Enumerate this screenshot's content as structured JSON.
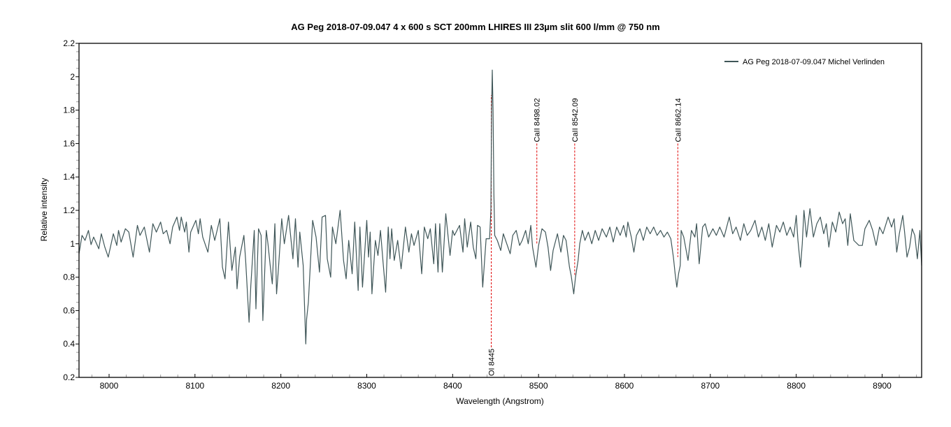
{
  "chart_data": {
    "type": "line",
    "title": "AG Peg   2018-07-09.047   4 x 600 s   SCT 200mm  LHIRES III 23µm slit 600 l/mm @ 750 nm",
    "xlabel": "Wavelength (Angstrom)",
    "ylabel": "Relative intensity",
    "xlim": [
      7965,
      8946
    ],
    "ylim": [
      0.2,
      2.2
    ],
    "x_ticks": [
      8000,
      8100,
      8200,
      8300,
      8400,
      8500,
      8600,
      8700,
      8800,
      8900
    ],
    "x_tick_labels": [
      "8000",
      "8100",
      "8200",
      "8300",
      "8400",
      "8500",
      "8600",
      "8700",
      "8800",
      "8900"
    ],
    "x_minor_step": 20,
    "y_ticks": [
      0.2,
      0.4,
      0.6,
      0.8,
      1,
      1.2,
      1.4,
      1.6,
      1.8,
      2,
      2.2
    ],
    "y_tick_labels": [
      "0.2",
      "0.4",
      "0.6",
      "0.8",
      "1",
      "1.2",
      "1.4",
      "1.6",
      "1.8",
      "2",
      "2.2"
    ],
    "y_minor_step": 0.05,
    "grid": false,
    "legend": {
      "position": "top-right",
      "entries": [
        {
          "label": "AG Peg  2018-07-09.047  Michel Verlinden",
          "color": "#3f5658"
        }
      ]
    },
    "series": [
      {
        "name": "AG Peg  2018-07-09.047  Michel Verlinden",
        "color": "#3f5658",
        "points": [
          [
            7965,
            0.94
          ],
          [
            7968.5,
            1.05
          ],
          [
            7972,
            1.02
          ],
          [
            7976,
            1.08
          ],
          [
            7979,
            0.995
          ],
          [
            7982,
            1.04
          ],
          [
            7988,
            0.97
          ],
          [
            7991,
            1.06
          ],
          [
            7995,
            0.98
          ],
          [
            7999,
            0.92
          ],
          [
            8005,
            1.06
          ],
          [
            8009,
            0.99
          ],
          [
            8011,
            1.08
          ],
          [
            8014,
            1.01
          ],
          [
            8019,
            1.09
          ],
          [
            8023,
            1.07
          ],
          [
            8028,
            0.92
          ],
          [
            8033,
            1.11
          ],
          [
            8036,
            1.05
          ],
          [
            8041,
            1.1
          ],
          [
            8047,
            0.95
          ],
          [
            8051,
            1.12
          ],
          [
            8055,
            1.07
          ],
          [
            8060,
            1.13
          ],
          [
            8063,
            1.06
          ],
          [
            8067,
            1.08
          ],
          [
            8071,
            1.0
          ],
          [
            8074,
            1.1
          ],
          [
            8079,
            1.16
          ],
          [
            8082,
            1.08
          ],
          [
            8084,
            1.16
          ],
          [
            8088,
            1.07
          ],
          [
            8090,
            1.13
          ],
          [
            8093,
            0.95
          ],
          [
            8095,
            1.07
          ],
          [
            8101,
            1.14
          ],
          [
            8104,
            1.06
          ],
          [
            8106,
            1.15
          ],
          [
            8109,
            1.04
          ],
          [
            8115,
            0.95
          ],
          [
            8119,
            1.11
          ],
          [
            8123,
            1.02
          ],
          [
            8129,
            1.15
          ],
          [
            8132,
            0.86
          ],
          [
            8135,
            0.79
          ],
          [
            8139,
            1.13
          ],
          [
            8143,
            0.84
          ],
          [
            8147,
            0.98
          ],
          [
            8149,
            0.73
          ],
          [
            8152,
            0.92
          ],
          [
            8157,
            1.05
          ],
          [
            8159,
            0.9
          ],
          [
            8163,
            0.53
          ],
          [
            8165,
            0.75
          ],
          [
            8169,
            1.08
          ],
          [
            8171,
            0.61
          ],
          [
            8174,
            1.09
          ],
          [
            8177,
            1.05
          ],
          [
            8179,
            0.54
          ],
          [
            8183,
            1.08
          ],
          [
            8185,
            1.0
          ],
          [
            8188,
            0.85
          ],
          [
            8190,
            0.76
          ],
          [
            8193,
            1.12
          ],
          [
            8195,
            0.7
          ],
          [
            8197,
            0.84
          ],
          [
            8201,
            1.15
          ],
          [
            8204,
            1.0
          ],
          [
            8209,
            1.17
          ],
          [
            8214,
            0.91
          ],
          [
            8217,
            1.15
          ],
          [
            8220,
            0.86
          ],
          [
            8222,
            1.07
          ],
          [
            8226,
            0.87
          ],
          [
            8229,
            0.4
          ],
          [
            8230,
            0.55
          ],
          [
            8232,
            0.65
          ],
          [
            8237,
            1.14
          ],
          [
            8241,
            1.04
          ],
          [
            8245,
            0.83
          ],
          [
            8248,
            1.16
          ],
          [
            8252,
            1.17
          ],
          [
            8254,
            0.91
          ],
          [
            8258,
            0.8
          ],
          [
            8260,
            1.1
          ],
          [
            8264,
            1.0
          ],
          [
            8269,
            1.2
          ],
          [
            8273,
            0.9
          ],
          [
            8276,
            0.79
          ],
          [
            8279,
            1.02
          ],
          [
            8283,
            0.82
          ],
          [
            8286,
            1.13
          ],
          [
            8290,
            0.72
          ],
          [
            8292,
            1.1
          ],
          [
            8295,
            0.74
          ],
          [
            8300,
            1.14
          ],
          [
            8302,
            0.92
          ],
          [
            8304,
            1.07
          ],
          [
            8306,
            0.7
          ],
          [
            8310,
            1.02
          ],
          [
            8313,
            0.93
          ],
          [
            8316,
            1.08
          ],
          [
            8319,
            0.89
          ],
          [
            8322,
            0.71
          ],
          [
            8325,
            1.1
          ],
          [
            8327,
            0.91
          ],
          [
            8329,
            1.09
          ],
          [
            8332,
            0.9
          ],
          [
            8336,
            1.02
          ],
          [
            8340,
            0.85
          ],
          [
            8345,
            1.1
          ],
          [
            8349,
            0.95
          ],
          [
            8352,
            1.06
          ],
          [
            8355,
            0.99
          ],
          [
            8360,
            1.08
          ],
          [
            8364,
            0.82
          ],
          [
            8367,
            1.1
          ],
          [
            8371,
            1.03
          ],
          [
            8374,
            1.09
          ],
          [
            8378,
            0.88
          ],
          [
            8380,
            1.12
          ],
          [
            8383,
            0.83
          ],
          [
            8385,
            1.12
          ],
          [
            8388,
            0.83
          ],
          [
            8392,
            1.18
          ],
          [
            8397,
            0.93
          ],
          [
            8400,
            1.08
          ],
          [
            8402,
            1.05
          ],
          [
            8408,
            1.11
          ],
          [
            8412,
            0.95
          ],
          [
            8414,
            1.15
          ],
          [
            8417,
            0.98
          ],
          [
            8421,
            1.13
          ],
          [
            8424,
            0.98
          ],
          [
            8427,
            0.91
          ],
          [
            8429,
            1.11
          ],
          [
            8432,
            1.1
          ],
          [
            8435,
            0.74
          ],
          [
            8439,
            1.03
          ],
          [
            8443,
            1.03
          ],
          [
            8444.5,
            1.2
          ],
          [
            8445.3,
            1.8
          ],
          [
            8446.1,
            2.04
          ],
          [
            8447,
            1.8
          ],
          [
            8448,
            1.3
          ],
          [
            8449,
            1.05
          ],
          [
            8452,
            1.02
          ],
          [
            8456,
            0.96
          ],
          [
            8459,
            1.06
          ],
          [
            8463,
            1.0
          ],
          [
            8467,
            0.94
          ],
          [
            8470,
            1.05
          ],
          [
            8474,
            1.08
          ],
          [
            8478,
            0.99
          ],
          [
            8481,
            1.02
          ],
          [
            8485,
            1.08
          ],
          [
            8488,
            1.0
          ],
          [
            8491,
            1.11
          ],
          [
            8493,
            0.98
          ],
          [
            8497,
            0.86
          ],
          [
            8500,
            0.99
          ],
          [
            8504,
            1.09
          ],
          [
            8508,
            1.07
          ],
          [
            8511,
            0.98
          ],
          [
            8514,
            0.84
          ],
          [
            8517,
            0.96
          ],
          [
            8522,
            1.06
          ],
          [
            8526,
            0.95
          ],
          [
            8529,
            1.05
          ],
          [
            8532,
            1.02
          ],
          [
            8536,
            0.86
          ],
          [
            8538,
            0.81
          ],
          [
            8541,
            0.7
          ],
          [
            8543,
            0.8
          ],
          [
            8546,
            0.9
          ],
          [
            8548,
            1.0
          ],
          [
            8551,
            1.08
          ],
          [
            8554,
            1.02
          ],
          [
            8558,
            1.07
          ],
          [
            8562,
            1.0
          ],
          [
            8566,
            1.08
          ],
          [
            8570,
            1.02
          ],
          [
            8574,
            1.09
          ],
          [
            8579,
            1.04
          ],
          [
            8583,
            1.1
          ],
          [
            8587,
            1.01
          ],
          [
            8591,
            1.1
          ],
          [
            8595,
            1.05
          ],
          [
            8599,
            1.11
          ],
          [
            8602,
            1.04
          ],
          [
            8604,
            1.13
          ],
          [
            8608,
            1.04
          ],
          [
            8611,
            0.95
          ],
          [
            8614,
            1.05
          ],
          [
            8618,
            1.09
          ],
          [
            8622,
            1.02
          ],
          [
            8626,
            1.1
          ],
          [
            8630,
            1.06
          ],
          [
            8634,
            1.1
          ],
          [
            8638,
            1.05
          ],
          [
            8642,
            1.08
          ],
          [
            8646,
            1.04
          ],
          [
            8650,
            1.07
          ],
          [
            8654,
            1.03
          ],
          [
            8657,
            0.92
          ],
          [
            8659,
            0.82
          ],
          [
            8661,
            0.74
          ],
          [
            8663,
            0.82
          ],
          [
            8665,
            0.87
          ],
          [
            8666,
            1.08
          ],
          [
            8669,
            1.04
          ],
          [
            8674,
            0.9
          ],
          [
            8678,
            1.08
          ],
          [
            8682,
            1.04
          ],
          [
            8684,
            1.12
          ],
          [
            8687,
            0.88
          ],
          [
            8691,
            1.1
          ],
          [
            8694,
            1.12
          ],
          [
            8698,
            1.04
          ],
          [
            8703,
            1.09
          ],
          [
            8707,
            1.05
          ],
          [
            8711,
            1.1
          ],
          [
            8716,
            1.04
          ],
          [
            8722,
            1.16
          ],
          [
            8726,
            1.06
          ],
          [
            8730,
            1.1
          ],
          [
            8735,
            1.02
          ],
          [
            8739,
            1.12
          ],
          [
            8743,
            1.05
          ],
          [
            8747,
            1.08
          ],
          [
            8752,
            1.14
          ],
          [
            8756,
            1.04
          ],
          [
            8760,
            1.1
          ],
          [
            8764,
            1.02
          ],
          [
            8768,
            1.12
          ],
          [
            8772,
            0.98
          ],
          [
            8777,
            1.11
          ],
          [
            8781,
            1.07
          ],
          [
            8785,
            1.13
          ],
          [
            8789,
            1.05
          ],
          [
            8793,
            1.1
          ],
          [
            8797,
            1.04
          ],
          [
            8800,
            1.17
          ],
          [
            8802,
            1.02
          ],
          [
            8805,
            0.86
          ],
          [
            8807,
            1.0
          ],
          [
            8809,
            1.2
          ],
          [
            8812,
            1.04
          ],
          [
            8816,
            1.21
          ],
          [
            8820,
            1.04
          ],
          [
            8824,
            1.12
          ],
          [
            8828,
            1.16
          ],
          [
            8832,
            1.06
          ],
          [
            8835,
            1.12
          ],
          [
            8838,
            0.98
          ],
          [
            8842,
            1.13
          ],
          [
            8846,
            1.07
          ],
          [
            8850,
            1.19
          ],
          [
            8854,
            1.12
          ],
          [
            8857,
            1.15
          ],
          [
            8860,
            0.99
          ],
          [
            8863,
            1.18
          ],
          [
            8867,
            1.02
          ],
          [
            8873,
            0.99
          ],
          [
            8877,
            0.99
          ],
          [
            8880,
            1.09
          ],
          [
            8885,
            1.14
          ],
          [
            8889,
            1.08
          ],
          [
            8893,
            0.99
          ],
          [
            8897,
            1.1
          ],
          [
            8901,
            1.06
          ],
          [
            8907,
            1.16
          ],
          [
            8911,
            1.1
          ],
          [
            8914,
            1.15
          ],
          [
            8917,
            0.95
          ],
          [
            8920,
            1.06
          ],
          [
            8924,
            1.17
          ],
          [
            8926,
            1.08
          ],
          [
            8929,
            0.92
          ],
          [
            8932,
            0.98
          ],
          [
            8935,
            1.09
          ],
          [
            8938,
            1.05
          ],
          [
            8941,
            0.91
          ],
          [
            8944,
            1.08
          ],
          [
            8946,
            0.87
          ]
        ]
      }
    ],
    "annotations": [
      {
        "label": "OI 8445",
        "wavelength": 8445,
        "label_position": "bottom",
        "line_from": 0.38,
        "line_to": 1.89,
        "color": "#e00000"
      },
      {
        "label": "CaII 8498.02",
        "wavelength": 8498.02,
        "label_position": "top",
        "line_from": 1.6,
        "line_to": 1.0,
        "color": "#e00000"
      },
      {
        "label": "CaII 8542.09",
        "wavelength": 8542.09,
        "label_position": "top",
        "line_from": 1.6,
        "line_to": 0.81,
        "color": "#e00000"
      },
      {
        "label": "CaII 8662.14",
        "wavelength": 8662.14,
        "label_position": "top",
        "line_from": 1.6,
        "line_to": 0.92,
        "color": "#e00000"
      }
    ]
  }
}
